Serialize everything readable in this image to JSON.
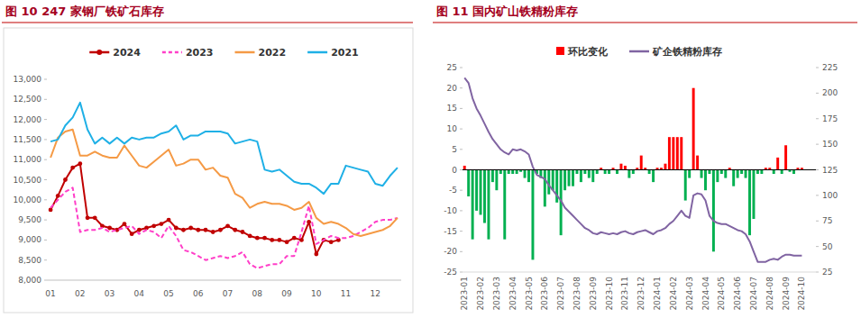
{
  "chart_data": [
    {
      "type": "line",
      "title": "图 10 247 家钢厂铁矿石库存",
      "categories": [
        "01",
        null,
        null,
        null,
        "02",
        null,
        null,
        null,
        "03",
        null,
        null,
        null,
        "04",
        null,
        null,
        null,
        "05",
        null,
        null,
        null,
        "06",
        null,
        null,
        null,
        "07",
        null,
        null,
        null,
        "08",
        null,
        null,
        null,
        "09",
        null,
        null,
        null,
        "10",
        null,
        null,
        null,
        "11",
        null,
        null,
        null,
        "12",
        null,
        null,
        null
      ],
      "ylim": [
        8000,
        13000
      ],
      "yticks": [
        {
          "value": 8000,
          "label": "8,000"
        },
        {
          "value": 8500,
          "label": "8,500"
        },
        {
          "value": 9000,
          "label": "9,000"
        },
        {
          "value": 9500,
          "label": "9,500"
        },
        {
          "value": 10000,
          "label": "10,000"
        },
        {
          "value": 10500,
          "label": "10,500"
        },
        {
          "value": 11000,
          "label": "11,000"
        },
        {
          "value": 11500,
          "label": "11,500"
        },
        {
          "value": 12000,
          "label": "12,000"
        },
        {
          "value": 12500,
          "label": "12,500"
        },
        {
          "value": 13000,
          "label": "13,000"
        }
      ],
      "legend": "top",
      "series": [
        {
          "name": "2024",
          "color": "#c00000",
          "marker": "circle",
          "values": [
            9750,
            10100,
            10500,
            10800,
            10900,
            9550,
            9550,
            9350,
            9300,
            9250,
            9400,
            9150,
            9250,
            9300,
            9350,
            9400,
            9500,
            9300,
            9250,
            9300,
            9250,
            9250,
            9200,
            9250,
            9350,
            9250,
            9200,
            9100,
            9050,
            9050,
            9000,
            9000,
            8950,
            9050,
            9000,
            9450,
            8650,
            9000,
            8950,
            9000,
            null,
            null,
            null,
            null,
            null,
            null,
            null,
            null
          ]
        },
        {
          "name": "2023",
          "color": "#ff3fc8",
          "line_style": "dashed",
          "values": [
            9800,
            10000,
            10200,
            10300,
            9200,
            9250,
            9250,
            9300,
            9200,
            9250,
            9300,
            9350,
            9150,
            9250,
            9200,
            9050,
            9350,
            9100,
            8750,
            8700,
            8600,
            8500,
            8550,
            8600,
            8550,
            8600,
            8700,
            8400,
            8300,
            8350,
            8400,
            8400,
            8600,
            8600,
            9200,
            9850,
            8900,
            9000,
            9100,
            9050,
            9050,
            9100,
            9200,
            9300,
            9450,
            9500,
            9500,
            9550
          ]
        },
        {
          "name": "2022",
          "color": "#f59a45",
          "values": [
            11050,
            11550,
            11700,
            11750,
            11100,
            11100,
            11200,
            11100,
            11050,
            11050,
            11350,
            11100,
            10850,
            10800,
            10950,
            11100,
            11250,
            10850,
            10900,
            11000,
            11000,
            10750,
            10800,
            10600,
            10550,
            10150,
            10050,
            9800,
            9900,
            9950,
            9900,
            9900,
            9850,
            9750,
            9800,
            9950,
            9550,
            9400,
            9450,
            9400,
            9300,
            9150,
            9100,
            9150,
            9200,
            9250,
            9350,
            9550
          ]
        },
        {
          "name": "2021",
          "color": "#1fb0e6",
          "values": [
            11450,
            11500,
            11850,
            12050,
            12420,
            11750,
            11400,
            11550,
            11400,
            11550,
            11400,
            11550,
            11500,
            11550,
            11550,
            11650,
            11700,
            11850,
            11500,
            11600,
            11600,
            11700,
            11700,
            11700,
            11650,
            11400,
            11450,
            11500,
            11450,
            10750,
            10700,
            10750,
            10600,
            10450,
            10400,
            10400,
            10300,
            10150,
            10400,
            10400,
            10850,
            10800,
            10750,
            10700,
            10400,
            10350,
            10600,
            10800
          ]
        }
      ]
    },
    {
      "type": "bar",
      "title": "图 11 国内矿山铁精粉库存",
      "categories": [
        "2023-01",
        null,
        null,
        null,
        "2023-02",
        null,
        null,
        null,
        "2023-03",
        null,
        null,
        null,
        "2023-04",
        null,
        null,
        null,
        "2023-05",
        null,
        null,
        null,
        "2023-06",
        null,
        null,
        null,
        "2023-07",
        null,
        null,
        null,
        "2023-08",
        null,
        null,
        null,
        "2023-09",
        null,
        null,
        null,
        "2023-10",
        null,
        null,
        null,
        "2023-11",
        null,
        null,
        null,
        "2023-12",
        null,
        null,
        null,
        "2024-01",
        null,
        null,
        null,
        "2024-02",
        null,
        null,
        null,
        "2024-03",
        null,
        null,
        null,
        "2024-04",
        null,
        null,
        null,
        "2024-05",
        null,
        null,
        null,
        "2024-06",
        null,
        null,
        null,
        "2024-07",
        null,
        null,
        null,
        "2024-08",
        null,
        null,
        null,
        "2024-09",
        null,
        null,
        null,
        "2024-10",
        null,
        null,
        null
      ],
      "ylim": [
        -25,
        25
      ],
      "yticks": [
        -25,
        -20,
        -15,
        -10,
        -5,
        0,
        5,
        10,
        15,
        20,
        25
      ],
      "y2lim": [
        25,
        225
      ],
      "y2ticks": [
        25,
        50,
        75,
        100,
        125,
        150,
        175,
        200,
        225
      ],
      "legend": "top",
      "series": [
        {
          "name": "环比变化",
          "type": "bar",
          "color": "#ff0000",
          "values": [
            1,
            -6.5,
            -17,
            -10,
            -11,
            -13,
            -17,
            -3,
            -5,
            -1,
            -17,
            -1,
            -1,
            -1,
            -0.5,
            -2,
            -3,
            -22,
            -1,
            -2,
            -9,
            -6,
            -5,
            -8,
            -16,
            -5,
            -4,
            -4,
            -1,
            -3,
            -1,
            -2,
            -3,
            -1,
            0.5,
            -1,
            -1,
            0.5,
            -1,
            1.5,
            1,
            -2,
            -1,
            0.5,
            3.5,
            0.5,
            -1,
            -3,
            0.5,
            0.5,
            1.5,
            8,
            8,
            8,
            8,
            -7.5,
            -2,
            20,
            3.5,
            -2,
            -5,
            -1,
            -20,
            -3,
            -1,
            -2,
            0.5,
            -4,
            -2,
            -1,
            -2,
            -16,
            -12,
            -1,
            -1,
            0.5,
            0.5,
            -1,
            3,
            -1,
            6,
            -0.5,
            -1,
            0.5,
            0.5,
            null,
            null,
            null
          ],
          "colors": [
            "#ff0000",
            "#00b050",
            "#00b050",
            "#00b050",
            "#00b050",
            "#00b050",
            "#00b050",
            "#00b050",
            "#00b050",
            "#00b050",
            "#00b050",
            "#00b050",
            "#00b050",
            "#00b050",
            "#00b050",
            "#00b050",
            "#00b050",
            "#00b050",
            "#00b050",
            "#00b050",
            "#00b050",
            "#00b050",
            "#00b050",
            "#00b050",
            "#00b050",
            "#00b050",
            "#00b050",
            "#00b050",
            "#00b050",
            "#00b050",
            "#00b050",
            "#00b050",
            "#00b050",
            "#00b050",
            "#ff0000",
            "#00b050",
            "#00b050",
            "#ff0000",
            "#00b050",
            "#ff0000",
            "#ff0000",
            "#00b050",
            "#00b050",
            "#ff0000",
            "#ff0000",
            "#ff0000",
            "#00b050",
            "#00b050",
            "#ff0000",
            "#ff0000",
            "#ff0000",
            "#ff0000",
            "#ff0000",
            "#ff0000",
            "#ff0000",
            "#00b050",
            "#00b050",
            "#ff0000",
            "#ff0000",
            "#00b050",
            "#00b050",
            "#00b050",
            "#00b050",
            "#00b050",
            "#00b050",
            "#00b050",
            "#ff0000",
            "#00b050",
            "#00b050",
            "#00b050",
            "#00b050",
            "#00b050",
            "#00b050",
            "#00b050",
            "#00b050",
            "#ff0000",
            "#ff0000",
            "#00b050",
            "#ff0000",
            "#00b050",
            "#ff0000",
            "#00b050",
            "#00b050",
            "#ff0000",
            "#ff0000",
            null,
            null,
            null
          ]
        },
        {
          "name": "矿企铁精粉库存",
          "type": "line",
          "axis": "y2",
          "color": "#8064a2",
          "values": [
            215,
            210,
            195,
            185,
            178,
            170,
            162,
            155,
            150,
            145,
            142,
            140,
            145,
            144,
            145,
            143,
            140,
            128,
            120,
            118,
            116,
            110,
            105,
            100,
            95,
            88,
            84,
            80,
            76,
            72,
            68,
            66,
            63,
            62,
            64,
            63,
            62,
            63,
            62,
            64,
            65,
            63,
            62,
            64,
            65,
            66,
            64,
            62,
            65,
            66,
            68,
            72,
            75,
            80,
            85,
            80,
            78,
            100,
            102,
            101,
            95,
            80,
            75,
            73,
            72,
            72,
            70,
            68,
            66,
            65,
            62,
            55,
            45,
            35,
            35,
            35,
            37,
            38,
            37,
            40,
            42,
            42,
            41,
            41,
            41,
            null,
            null,
            null
          ]
        }
      ]
    }
  ]
}
